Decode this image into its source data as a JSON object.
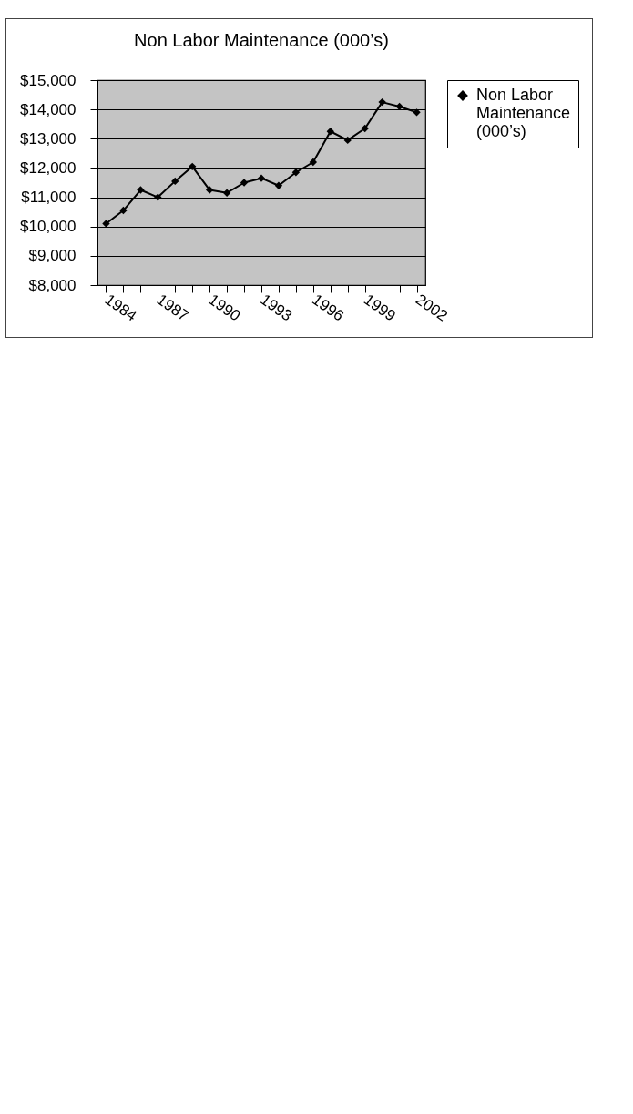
{
  "chart_data": {
    "type": "line",
    "title": "Non Labor Maintenance (000’s)",
    "categories": [
      "1984",
      null,
      null,
      "1987",
      null,
      null,
      "1990",
      null,
      null,
      "1993",
      null,
      null,
      "1996",
      null,
      null,
      "1999",
      null,
      null,
      "2002"
    ],
    "series": [
      {
        "name": "Non Labor Maintenance (000’s)",
        "color": "#000000",
        "values": [
          10100,
          10550,
          11250,
          11000,
          11550,
          12050,
          11250,
          11150,
          11500,
          11650,
          11400,
          11850,
          12200,
          13250,
          12950,
          13350,
          14250,
          14100,
          13900
        ]
      }
    ],
    "ylim": [
      8000,
      15000
    ],
    "yticks": [
      {
        "value": 8000,
        "label": "$8,000"
      },
      {
        "value": 9000,
        "label": "$9,000"
      },
      {
        "value": 10000,
        "label": "$10,000"
      },
      {
        "value": 11000,
        "label": "$11,000"
      },
      {
        "value": 12000,
        "label": "$12,000"
      },
      {
        "value": 13000,
        "label": "$13,000"
      },
      {
        "value": 14000,
        "label": "$14,000"
      },
      {
        "value": 15000,
        "label": "$15,000"
      }
    ],
    "grid": "y",
    "legend": "right",
    "marker": "diamond",
    "line_style": "solid"
  }
}
